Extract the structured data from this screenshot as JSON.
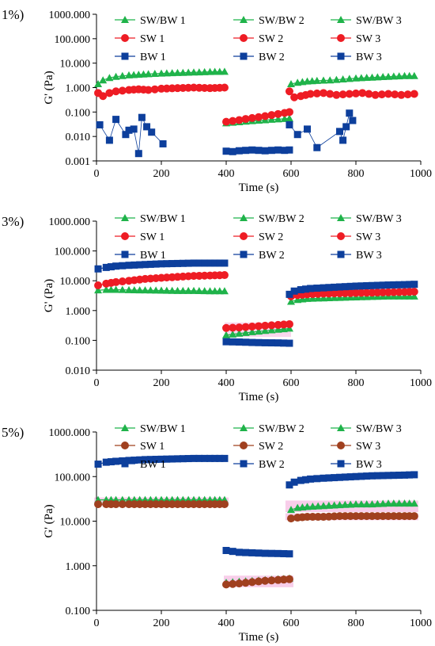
{
  "colors": {
    "sw_bw": "#1fb34a",
    "sw": "#ee1c24",
    "sw_5": "#a0401f",
    "bw": "#0d3f9c",
    "highlight": "#f2a6d8",
    "axis": "#000000"
  },
  "chart_data": [
    {
      "type": "scatter",
      "panel_label": "1%)",
      "xlabel": "Time (s)",
      "ylabel": "G' (Pa)",
      "xlim": [
        0,
        1000
      ],
      "ylim": [
        0.001,
        1000
      ],
      "y_scale": "log",
      "x_ticks": [
        "0",
        "200",
        "400",
        "600",
        "800",
        "1000"
      ],
      "y_ticks": [
        "0.001",
        "0.010",
        "0.100",
        "1.000",
        "10.000",
        "100.000",
        "1000.000"
      ],
      "legend": [
        "SW/BW 1",
        "SW/BW 2",
        "SW/BW 3",
        "SW 1",
        "SW 2",
        "SW 3",
        "BW 1",
        "BW 2",
        "BW 3"
      ],
      "series": [
        {
          "name": "SW/BW",
          "marker": "triangle",
          "color": "#1fb34a",
          "segments": [
            {
              "x": [
                5,
                20,
                40,
                60,
                80,
                100,
                130,
                160,
                200,
                250,
                300,
                350,
                395
              ],
              "y": [
                1.4,
                2.0,
                2.5,
                2.8,
                3.0,
                3.2,
                3.4,
                3.6,
                3.8,
                4.0,
                4.2,
                4.4,
                4.5
              ]
            },
            {
              "x": [
                400,
                420,
                440,
                460,
                480,
                500,
                520,
                540,
                560,
                580,
                595
              ],
              "y": [
                0.035,
                0.037,
                0.039,
                0.041,
                0.043,
                0.045,
                0.047,
                0.049,
                0.051,
                0.053,
                0.055
              ]
            },
            {
              "x": [
                600,
                620,
                650,
                680,
                720,
                760,
                800,
                850,
                900,
                950,
                980
              ],
              "y": [
                1.4,
                1.6,
                1.8,
                1.9,
                2.0,
                2.2,
                2.4,
                2.6,
                2.8,
                3.0,
                3.0
              ]
            }
          ]
        },
        {
          "name": "SW",
          "marker": "circle",
          "color": "#ee1c24",
          "segments": [
            {
              "x": [
                5,
                20,
                40,
                60,
                80,
                100,
                130,
                160,
                200,
                250,
                300,
                350,
                395
              ],
              "y": [
                0.6,
                0.45,
                0.6,
                0.7,
                0.75,
                0.8,
                0.85,
                0.8,
                0.9,
                0.95,
                1.0,
                0.95,
                1.0
              ]
            },
            {
              "x": [
                400,
                420,
                440,
                460,
                480,
                500,
                520,
                540,
                560,
                580,
                595
              ],
              "y": [
                0.04,
                0.043,
                0.047,
                0.052,
                0.057,
                0.062,
                0.068,
                0.075,
                0.083,
                0.092,
                0.1
              ]
            },
            {
              "x": [
                595,
                610,
                630,
                660,
                700,
                740,
                780,
                820,
                860,
                900,
                940,
                980
              ],
              "y": [
                0.7,
                0.4,
                0.45,
                0.55,
                0.6,
                0.5,
                0.55,
                0.6,
                0.5,
                0.55,
                0.5,
                0.55
              ]
            }
          ]
        },
        {
          "name": "BW",
          "marker": "square",
          "color": "#0d3f9c",
          "segments": [
            {
              "scatter": true,
              "x": [
                10,
                40,
                60,
                90,
                100,
                115,
                130,
                140,
                155,
                170,
                205
              ],
              "y": [
                0.03,
                0.007,
                0.05,
                0.012,
                0.018,
                0.02,
                0.002,
                0.06,
                0.025,
                0.015,
                0.005
              ]
            },
            {
              "x": [
                400,
                420,
                440,
                460,
                480,
                500,
                520,
                540,
                560,
                580,
                595
              ],
              "y": [
                0.0025,
                0.0024,
                0.0026,
                0.0027,
                0.0028,
                0.0027,
                0.0026,
                0.0027,
                0.0028,
                0.0027,
                0.0028
              ]
            },
            {
              "scatter": true,
              "x": [
                595,
                620,
                650,
                680,
                750,
                760,
                770,
                780,
                790
              ],
              "y": [
                0.03,
                0.012,
                0.02,
                0.0035,
                0.016,
                0.007,
                0.025,
                0.09,
                0.045
              ]
            }
          ]
        }
      ]
    },
    {
      "type": "scatter",
      "panel_label": "3%)",
      "xlabel": "Time (s)",
      "ylabel": "G' (Pa)",
      "xlim": [
        0,
        1000
      ],
      "ylim": [
        0.01,
        1000
      ],
      "y_scale": "log",
      "x_ticks": [
        "0",
        "200",
        "400",
        "600",
        "800",
        "1000"
      ],
      "y_ticks": [
        "0.010",
        "0.100",
        "1.000",
        "10.000",
        "100.000",
        "1000.000"
      ],
      "legend": [
        "SW/BW 1",
        "SW/BW 2",
        "SW/BW 3",
        "SW 1",
        "SW 2",
        "SW 3",
        "BW 1",
        "BW 2",
        "BW 3"
      ],
      "series": [
        {
          "name": "SW/BW",
          "marker": "triangle",
          "color": "#1fb34a",
          "segments": [
            {
              "x": [
                5,
                30,
                60,
                100,
                150,
                200,
                250,
                300,
                350,
                395
              ],
              "y": [
                4.8,
                5.0,
                5.0,
                4.9,
                4.8,
                4.7,
                4.6,
                4.6,
                4.5,
                4.5
              ]
            },
            {
              "x": [
                400,
                440,
                480,
                520,
                560,
                595
              ],
              "y": [
                0.15,
                0.17,
                0.19,
                0.21,
                0.23,
                0.25
              ]
            },
            {
              "x": [
                600,
                620,
                650,
                700,
                750,
                800,
                850,
                900,
                950,
                980
              ],
              "y": [
                2.0,
                2.3,
                2.5,
                2.6,
                2.7,
                2.8,
                2.9,
                3.0,
                3.0,
                3.0
              ]
            }
          ]
        },
        {
          "name": "SW",
          "marker": "circle",
          "color": "#ee1c24",
          "segments": [
            {
              "x": [
                5,
                30,
                60,
                100,
                150,
                200,
                250,
                300,
                350,
                395
              ],
              "y": [
                7.0,
                8.0,
                9.0,
                10.0,
                11.5,
                12.5,
                13.5,
                14.5,
                15.0,
                15.5
              ]
            },
            {
              "x": [
                400,
                440,
                480,
                520,
                560,
                595
              ],
              "y": [
                0.26,
                0.27,
                0.29,
                0.31,
                0.33,
                0.35
              ]
            },
            {
              "x": [
                600,
                620,
                650,
                700,
                750,
                800,
                850,
                900,
                950,
                980
              ],
              "y": [
                3.0,
                3.3,
                3.5,
                3.7,
                3.8,
                3.9,
                4.0,
                4.1,
                4.2,
                4.3
              ]
            }
          ]
        },
        {
          "name": "BW",
          "marker": "square",
          "color": "#0d3f9c",
          "segments": [
            {
              "x": [
                5,
                30,
                60,
                100,
                150,
                200,
                250,
                300,
                350,
                395
              ],
              "y": [
                25,
                28,
                31,
                33,
                35,
                37,
                38,
                39,
                39,
                39
              ]
            },
            {
              "x": [
                400,
                440,
                480,
                520,
                560,
                595
              ],
              "y": [
                0.09,
                0.088,
                0.085,
                0.083,
                0.082,
                0.08
              ]
            },
            {
              "x": [
                595,
                610,
                630,
                660,
                700,
                750,
                800,
                850,
                900,
                950,
                980
              ],
              "y": [
                3.5,
                4.5,
                5.0,
                5.5,
                5.8,
                6.2,
                6.6,
                6.9,
                7.2,
                7.4,
                7.6
              ]
            }
          ]
        }
      ]
    },
    {
      "type": "scatter",
      "panel_label": "5%)",
      "xlabel": "Time (s)",
      "ylabel": "G' (Pa)",
      "xlim": [
        0,
        1000
      ],
      "ylim": [
        0.1,
        1000
      ],
      "y_scale": "log",
      "x_ticks": [
        "0",
        "200",
        "400",
        "600",
        "800",
        "1000"
      ],
      "y_ticks": [
        "0.100",
        "1.000",
        "10.000",
        "100.000",
        "1000.000"
      ],
      "legend": [
        "SW/BW 1",
        "SW/BW 2",
        "SW/BW 3",
        "SW 1",
        "SW 2",
        "SW 3",
        "BW 1",
        "BW 2",
        "BW 3"
      ],
      "series": [
        {
          "name": "SW/BW",
          "marker": "triangle",
          "color": "#1fb34a",
          "segments": [
            {
              "x": [
                5,
                30,
                60,
                100,
                150,
                200,
                250,
                300,
                350,
                395
              ],
              "y": [
                30,
                30,
                30,
                30,
                30,
                30,
                30,
                30,
                30,
                30
              ]
            },
            {
              "x": [
                400,
                440,
                480,
                520,
                560,
                595
              ],
              "y": [
                0.42,
                0.44,
                0.46,
                0.48,
                0.5,
                0.52
              ]
            },
            {
              "x": [
                600,
                620,
                650,
                700,
                750,
                800,
                850,
                900,
                950,
                980
              ],
              "y": [
                18,
                20,
                21,
                22,
                23,
                24,
                24,
                25,
                25,
                25
              ]
            }
          ]
        },
        {
          "name": "SW",
          "marker": "circle",
          "color": "#a0401f",
          "segments": [
            {
              "x": [
                5,
                30,
                60,
                100,
                150,
                200,
                250,
                300,
                350,
                395
              ],
              "y": [
                24,
                24,
                24,
                24,
                24,
                24,
                24,
                24,
                24,
                24
              ]
            },
            {
              "x": [
                400,
                440,
                480,
                520,
                560,
                595
              ],
              "y": [
                0.38,
                0.4,
                0.43,
                0.46,
                0.48,
                0.5
              ]
            },
            {
              "x": [
                600,
                620,
                650,
                700,
                750,
                800,
                850,
                900,
                950,
                980
              ],
              "y": [
                11.5,
                12,
                12.5,
                12.5,
                13,
                13,
                13,
                13,
                13,
                13
              ]
            }
          ]
        },
        {
          "name": "BW",
          "marker": "square",
          "color": "#0d3f9c",
          "segments": [
            {
              "x": [
                5,
                30,
                60,
                100,
                150,
                200,
                250,
                300,
                350,
                395
              ],
              "y": [
                190,
                210,
                220,
                230,
                240,
                245,
                250,
                255,
                255,
                255
              ]
            },
            {
              "x": [
                400,
                440,
                480,
                520,
                560,
                595
              ],
              "y": [
                2.2,
                2.0,
                1.95,
                1.9,
                1.88,
                1.85
              ]
            },
            {
              "x": [
                595,
                610,
                630,
                660,
                700,
                750,
                800,
                850,
                900,
                950,
                980
              ],
              "y": [
                65,
                75,
                82,
                88,
                92,
                96,
                100,
                104,
                106,
                108,
                110
              ]
            }
          ]
        }
      ]
    }
  ]
}
